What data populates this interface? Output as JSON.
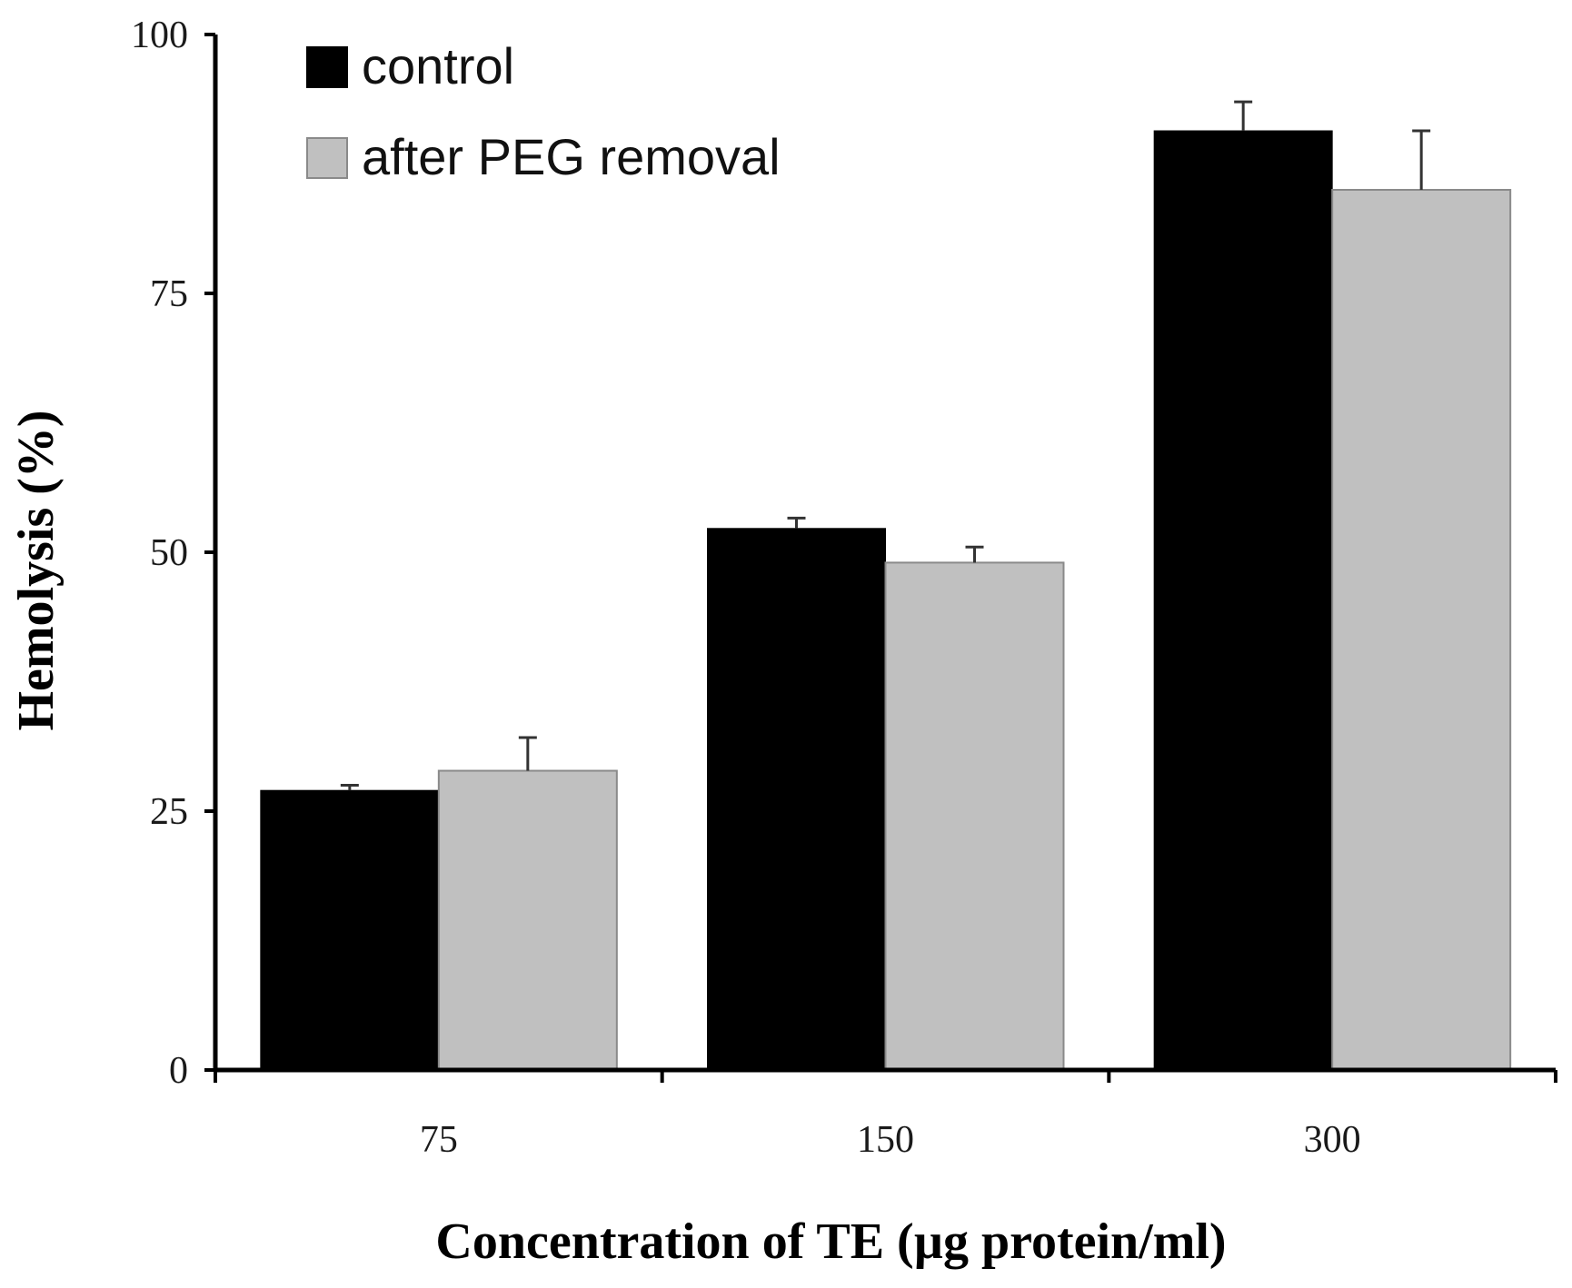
{
  "chart_data": {
    "type": "bar",
    "title": "",
    "xlabel": "Concentration of TE (µg protein/ml)",
    "ylabel": "Hemolysis (%)",
    "categories": [
      "75",
      "150",
      "300"
    ],
    "ylim": [
      0,
      100
    ],
    "yticks": [
      0,
      25,
      50,
      75,
      100
    ],
    "grid": false,
    "legend_position": "top-left",
    "series": [
      {
        "name": "control",
        "color": "#000000",
        "values": [
          27,
          52.3,
          90.7
        ],
        "errors": [
          0.5,
          1.0,
          2.8
        ]
      },
      {
        "name": "after PEG removal",
        "color": "#c0c0c0",
        "values": [
          28.9,
          49,
          85
        ],
        "errors": [
          3.2,
          1.5,
          5.7
        ]
      }
    ]
  }
}
